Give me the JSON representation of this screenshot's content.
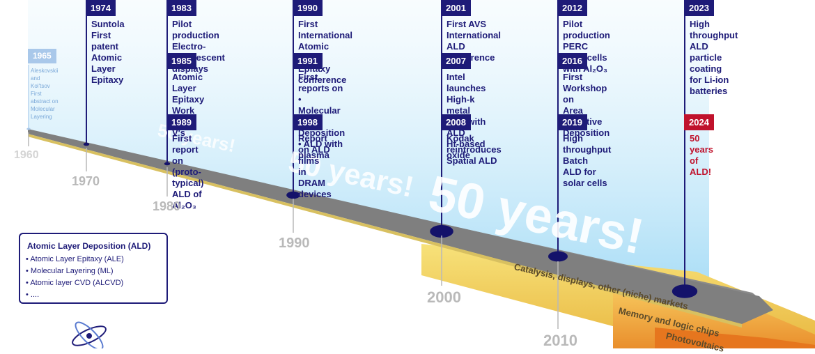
{
  "events": [
    {
      "year": "1965",
      "text": "Aleskovskii\nand Kol'tsov\nFirst abstract on\nMolecular Layering",
      "style": "small"
    },
    {
      "year": "1974",
      "text": "Suntola First\npatent Atomic\nLayer Epitaxy"
    },
    {
      "year": "1983",
      "text": "Pilot production Electro-\nluminescent displays"
    },
    {
      "year": "1985",
      "text": "Atomic Layer Epitaxy\nWork on III-V's"
    },
    {
      "year": "1989",
      "text": "First report on (proto-\ntypical) ALD of Al₂O₃"
    },
    {
      "year": "1990",
      "text": "First International Atomic\nLayer Epitaxy conference"
    },
    {
      "year": "1991",
      "text": "First reports on\n  • Molecular Layer Deposition\n  • ALD with plasma"
    },
    {
      "year": "1998",
      "text": "Report on ALD films\nin DRAM devices"
    },
    {
      "year": "2001",
      "text": "First AVS International\nALD conference"
    },
    {
      "year": "2007",
      "text": "Intel launches High-k\nmetal gate with ALD\nHf-based oxide"
    },
    {
      "year": "2008",
      "text": "Kodak reintroduces\nSpatial ALD"
    },
    {
      "year": "2012",
      "text": "Pilot production PERC\nsolar cells with Al₂O₃"
    },
    {
      "year": "2016",
      "text": "First Workshop on\nArea Selective Deposition"
    },
    {
      "year": "2019",
      "text": "High throughput Batch\nALD for solar cells"
    },
    {
      "year": "2023",
      "text": "High throughput\nALD particle coating\nfor Li-ion batteries"
    },
    {
      "year": "2024",
      "text": "50 years of ALD!",
      "style": "red"
    }
  ],
  "decades": [
    "1960",
    "1970",
    "1980",
    "1990",
    "2000",
    "2010"
  ],
  "banner": "50 years!",
  "legend": {
    "title": "Atomic Layer Deposition (ALD)",
    "items": [
      "Atomic Layer Epitaxy (ALE)",
      "Molecular Layering (ML)",
      "Atomic layer CVD (ALCVD)",
      "...."
    ]
  },
  "markets": [
    "Catalysis, displays, other (niche) markets",
    "Memory and logic chips",
    "Photovoltaics"
  ],
  "colors": {
    "navy": "#1e1b78",
    "red": "#c0122c",
    "timeline_grey": "#7a7a7a",
    "band_yellow": "#f5d84a",
    "band_orange": "#f0a83c",
    "sky": "#bfe6f8"
  }
}
